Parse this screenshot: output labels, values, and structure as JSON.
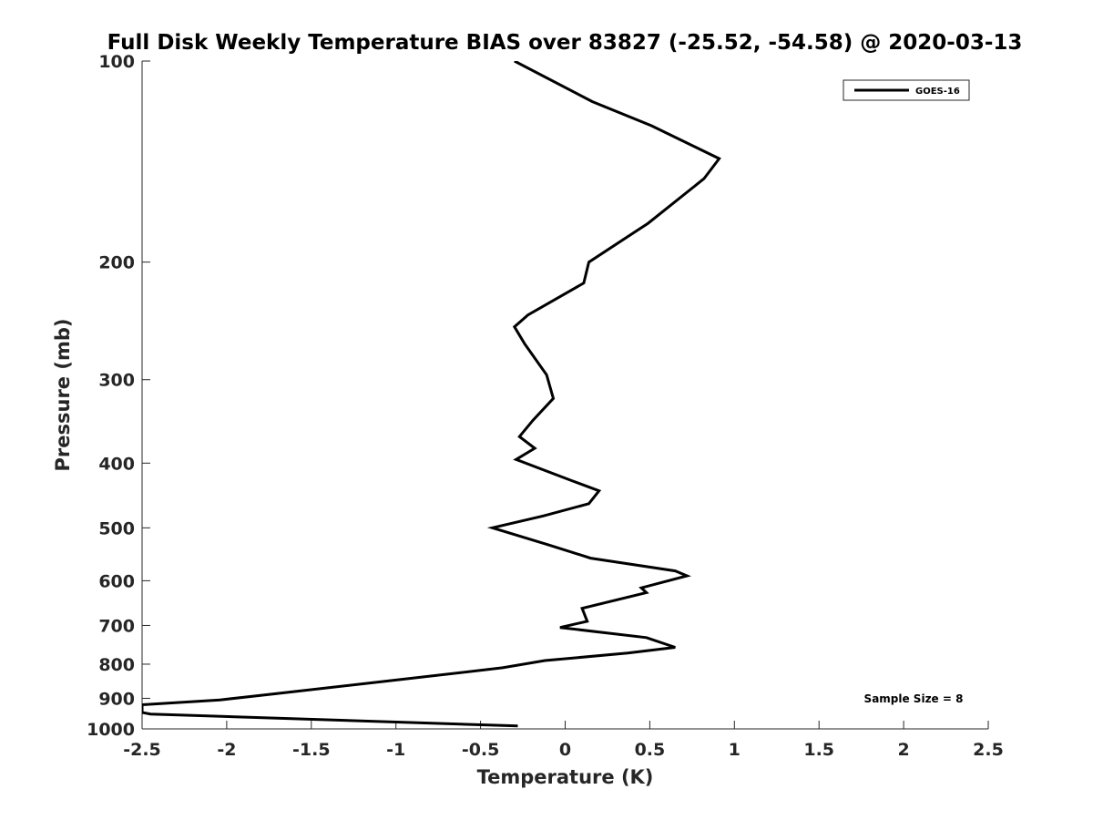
{
  "chart_data": {
    "type": "line",
    "title": "Full Disk Weekly Temperature BIAS over 83827 (-25.52, -54.58) @ 2020-03-13",
    "xlabel": "Temperature (K)",
    "ylabel": "Pressure (mb)",
    "xlim": [
      -2.5,
      2.5
    ],
    "ylim": [
      100,
      1000
    ],
    "y_scale": "log",
    "y_reversed": true,
    "x_ticks": [
      -2.5,
      -2,
      -1.5,
      -1,
      -0.5,
      0,
      0.5,
      1,
      1.5,
      2,
      2.5
    ],
    "x_tick_labels": [
      "-2.5",
      "-2",
      "-1.5",
      "-1",
      "-0.5",
      "0",
      "0.5",
      "1",
      "1.5",
      "2",
      "2.5"
    ],
    "y_ticks": [
      100,
      200,
      300,
      400,
      500,
      600,
      700,
      800,
      900,
      1000
    ],
    "y_tick_labels": [
      "100",
      "200",
      "300",
      "400",
      "500",
      "600",
      "700",
      "800",
      "900",
      "1000"
    ],
    "grid": false,
    "legend": {
      "position": "top-right",
      "entries": [
        "GOES-16"
      ]
    },
    "line_color": "#000000",
    "series": [
      {
        "name": "GOES-16",
        "x": [
          -0.3,
          0.16,
          0.51,
          0.91,
          0.82,
          0.49,
          0.14,
          0.11,
          -0.22,
          -0.3,
          -0.24,
          -0.11,
          -0.07,
          -0.19,
          -0.27,
          -0.18,
          -0.29,
          0.04,
          0.2,
          0.14,
          -0.13,
          -0.43,
          -0.1,
          0.15,
          0.65,
          0.72,
          0.45,
          0.48,
          0.1,
          0.13,
          -0.03,
          0.48,
          0.65,
          0.37,
          -0.12,
          -0.37,
          -1.0,
          -1.61,
          -2.04,
          -2.5,
          -2.5,
          -2.45,
          -0.28
        ],
        "y": [
          100,
          115,
          125,
          140,
          150,
          175,
          200,
          215,
          240,
          250,
          265,
          295,
          320,
          345,
          365,
          380,
          395,
          425,
          440,
          460,
          480,
          500,
          530,
          555,
          580,
          590,
          615,
          625,
          660,
          690,
          705,
          730,
          755,
          770,
          790,
          810,
          845,
          880,
          905,
          920,
          945,
          950,
          990
        ]
      }
    ],
    "annotations": [
      "Sample Size = 8"
    ]
  }
}
